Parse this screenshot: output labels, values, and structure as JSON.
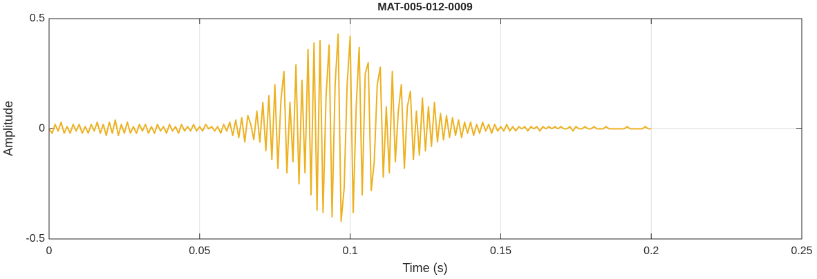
{
  "chart_data": {
    "type": "line",
    "title": "MAT-005-012-0009",
    "xlabel": "Time (s)",
    "ylabel": "Amplitude",
    "color": "#EDB120",
    "grid": true,
    "xlim": [
      0,
      0.25
    ],
    "xticks": [
      0,
      0.05,
      0.1,
      0.15,
      0.2,
      0.25
    ],
    "ylim": [
      -0.5,
      0.5
    ],
    "yticks": [
      -0.5,
      0,
      0.5
    ],
    "x": [
      0,
      0.001,
      0.002,
      0.003,
      0.004,
      0.005,
      0.006,
      0.007,
      0.008,
      0.009,
      0.01,
      0.011,
      0.012,
      0.013,
      0.014,
      0.015,
      0.016,
      0.017,
      0.018,
      0.019,
      0.02,
      0.021,
      0.022,
      0.023,
      0.024,
      0.025,
      0.026,
      0.027,
      0.028,
      0.029,
      0.03,
      0.031,
      0.032,
      0.033,
      0.034,
      0.035,
      0.036,
      0.037,
      0.038,
      0.039,
      0.04,
      0.041,
      0.042,
      0.043,
      0.044,
      0.045,
      0.046,
      0.047,
      0.048,
      0.049,
      0.05,
      0.051,
      0.052,
      0.053,
      0.054,
      0.055,
      0.056,
      0.057,
      0.058,
      0.059,
      0.06,
      0.061,
      0.062,
      0.063,
      0.064,
      0.065,
      0.066,
      0.067,
      0.068,
      0.069,
      0.07,
      0.071,
      0.072,
      0.073,
      0.074,
      0.075,
      0.076,
      0.077,
      0.078,
      0.079,
      0.08,
      0.081,
      0.082,
      0.083,
      0.084,
      0.085,
      0.086,
      0.087,
      0.088,
      0.089,
      0.09,
      0.091,
      0.092,
      0.093,
      0.094,
      0.095,
      0.096,
      0.097,
      0.098,
      0.099,
      0.1,
      0.101,
      0.102,
      0.103,
      0.104,
      0.105,
      0.106,
      0.107,
      0.108,
      0.109,
      0.11,
      0.111,
      0.112,
      0.113,
      0.114,
      0.115,
      0.116,
      0.117,
      0.118,
      0.119,
      0.12,
      0.121,
      0.122,
      0.123,
      0.124,
      0.125,
      0.126,
      0.127,
      0.128,
      0.129,
      0.13,
      0.131,
      0.132,
      0.133,
      0.134,
      0.135,
      0.136,
      0.137,
      0.138,
      0.139,
      0.14,
      0.141,
      0.142,
      0.143,
      0.144,
      0.145,
      0.146,
      0.147,
      0.148,
      0.149,
      0.15,
      0.151,
      0.152,
      0.153,
      0.154,
      0.155,
      0.156,
      0.157,
      0.158,
      0.159,
      0.16,
      0.161,
      0.162,
      0.163,
      0.164,
      0.165,
      0.166,
      0.167,
      0.168,
      0.169,
      0.17,
      0.171,
      0.172,
      0.173,
      0.174,
      0.175,
      0.176,
      0.177,
      0.178,
      0.179,
      0.18,
      0.181,
      0.182,
      0.183,
      0.184,
      0.185,
      0.186,
      0.187,
      0.188,
      0.189,
      0.19,
      0.191,
      0.192,
      0.193,
      0.194,
      0.195,
      0.196,
      0.197,
      0.198,
      0.199,
      0.2
    ],
    "values": [
      0,
      -0.02,
      0.02,
      -0.01,
      0.03,
      -0.02,
      0.01,
      -0.02,
      0.02,
      -0.01,
      0.02,
      -0.02,
      0.01,
      -0.02,
      0.02,
      -0.01,
      0.03,
      -0.02,
      0.02,
      -0.03,
      0.03,
      -0.02,
      0.04,
      -0.03,
      0.02,
      -0.02,
      0.03,
      -0.02,
      0.01,
      -0.02,
      0.02,
      -0.01,
      0.02,
      -0.02,
      0.01,
      -0.02,
      0.02,
      -0.01,
      0.01,
      -0.02,
      0.02,
      -0.01,
      0.01,
      -0.02,
      0.02,
      -0.01,
      0.01,
      -0.01,
      0.02,
      -0.01,
      0.01,
      -0.01,
      0.02,
      0,
      0.01,
      -0.01,
      0.01,
      -0.02,
      0.02,
      -0.01,
      0.03,
      -0.03,
      0.04,
      -0.04,
      0.05,
      -0.06,
      0.06,
      0.02,
      -0.05,
      0.08,
      -0.06,
      0.12,
      -0.1,
      0.15,
      -0.14,
      0.2,
      -0.18,
      0.13,
      0.26,
      -0.2,
      0.12,
      -0.15,
      0.29,
      -0.25,
      0.22,
      -0.2,
      0.36,
      -0.3,
      0.39,
      -0.37,
      0.4,
      -0.38,
      0.15,
      0.38,
      -0.4,
      0.2,
      0.43,
      -0.42,
      -0.27,
      0.2,
      0.42,
      -0.38,
      0.1,
      0.37,
      -0.3,
      0.25,
      0.3,
      -0.28,
      -0.15,
      0.2,
      0.28,
      -0.22,
      0.1,
      -0.2,
      0.26,
      -0.15,
      0.08,
      0.2,
      -0.18,
      0.1,
      0.17,
      -0.14,
      0.08,
      -0.12,
      0.14,
      -0.1,
      0.1,
      -0.08,
      0.12,
      -0.06,
      0.07,
      -0.05,
      0.06,
      -0.04,
      0.05,
      -0.03,
      0.04,
      -0.04,
      0.03,
      -0.02,
      0.03,
      -0.03,
      0.02,
      -0.02,
      0.03,
      -0.01,
      0.02,
      -0.02,
      0.02,
      -0.01,
      0.01,
      -0.01,
      0.02,
      -0.01,
      0.01,
      -0.01,
      0.01,
      0,
      0.01,
      -0.01,
      0.01,
      0,
      0.01,
      -0.01,
      0.01,
      0,
      0.01,
      0,
      0.01,
      0,
      0.01,
      0,
      0,
      0.01,
      -0.01,
      0.01,
      0,
      0,
      0.01,
      0,
      0,
      0.01,
      0,
      0,
      0,
      0.01,
      0,
      0,
      0,
      0,
      0,
      0,
      0.01,
      0,
      0,
      0,
      0,
      0,
      0.01,
      0,
      0
    ]
  }
}
